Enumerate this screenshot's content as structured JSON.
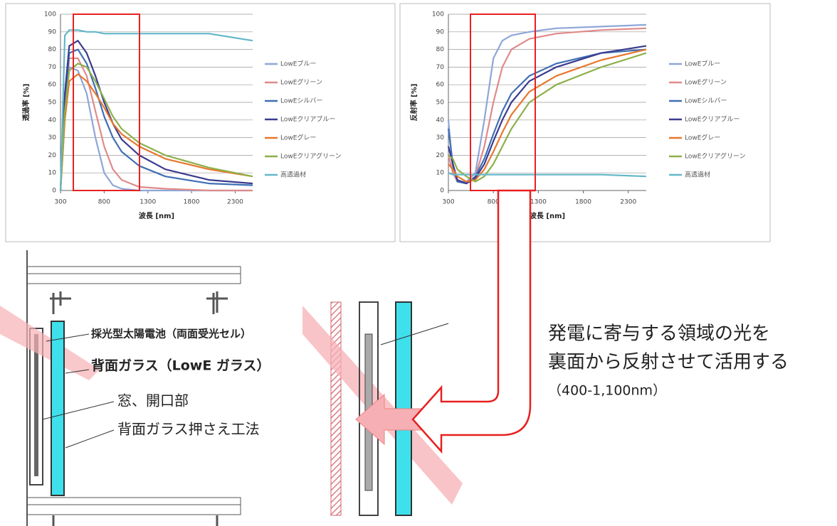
{
  "chart_data": [
    {
      "type": "line",
      "xlabel": "波長 [nm]",
      "ylabel": "透過率 [%]",
      "x": [
        300,
        350,
        400,
        500,
        600,
        700,
        800,
        900,
        1000,
        1200,
        1500,
        2000,
        2500
      ],
      "xlim": [
        300,
        2500
      ],
      "xticks": [
        300,
        800,
        1300,
        1800,
        2300
      ],
      "ylim": [
        0,
        100
      ],
      "yticks": [
        0,
        10,
        20,
        30,
        40,
        50,
        60,
        70,
        80,
        90,
        100
      ],
      "grid": true,
      "series": [
        {
          "name": "LowEブルー",
          "color": "#8ea6d8",
          "values": [
            0,
            40,
            70,
            68,
            55,
            30,
            10,
            3,
            1,
            0,
            0,
            0,
            0
          ]
        },
        {
          "name": "LowEグリーン",
          "color": "#e08a8a",
          "values": [
            0,
            45,
            75,
            75,
            65,
            45,
            25,
            12,
            6,
            2,
            1,
            0,
            0
          ]
        },
        {
          "name": "LowEシルバー",
          "color": "#3f6fb5",
          "values": [
            0,
            50,
            78,
            80,
            72,
            58,
            42,
            30,
            22,
            14,
            8,
            4,
            3
          ]
        },
        {
          "name": "LowEクリアブルー",
          "color": "#3b3b8f",
          "values": [
            0,
            55,
            82,
            85,
            78,
            65,
            50,
            38,
            29,
            20,
            12,
            6,
            4
          ]
        },
        {
          "name": "LowEグレー",
          "color": "#e8772e",
          "values": [
            0,
            40,
            62,
            66,
            62,
            55,
            47,
            38,
            32,
            25,
            18,
            12,
            8
          ]
        },
        {
          "name": "LowEクリアグリーン",
          "color": "#8db04a",
          "values": [
            0,
            45,
            68,
            72,
            70,
            62,
            52,
            42,
            35,
            27,
            20,
            13,
            8
          ]
        },
        {
          "name": "高透過材",
          "color": "#63b7c9",
          "values": [
            0,
            88,
            91,
            91,
            90,
            90,
            89,
            89,
            89,
            89,
            89,
            89,
            85
          ]
        }
      ]
    },
    {
      "type": "line",
      "xlabel": "波長 [nm]",
      "ylabel": "反射率 [%]",
      "x": [
        300,
        350,
        400,
        500,
        600,
        700,
        800,
        900,
        1000,
        1200,
        1500,
        2000,
        2500
      ],
      "xlim": [
        300,
        2500
      ],
      "xticks": [
        300,
        800,
        1300,
        1800,
        2300
      ],
      "ylim": [
        0,
        100
      ],
      "yticks": [
        0,
        10,
        20,
        30,
        40,
        50,
        60,
        70,
        80,
        90,
        100
      ],
      "grid": true,
      "series": [
        {
          "name": "LowEブルー",
          "color": "#8ea6d8",
          "values": [
            40,
            12,
            5,
            5,
            10,
            40,
            75,
            85,
            88,
            90,
            92,
            93,
            94
          ]
        },
        {
          "name": "LowEグリーン",
          "color": "#e08a8a",
          "values": [
            20,
            10,
            5,
            4,
            8,
            25,
            50,
            70,
            80,
            86,
            89,
            91,
            92
          ]
        },
        {
          "name": "LowEシルバー",
          "color": "#3f6fb5",
          "values": [
            35,
            15,
            5,
            4,
            8,
            18,
            32,
            45,
            55,
            65,
            72,
            78,
            80
          ]
        },
        {
          "name": "LowEクリアブルー",
          "color": "#3b3b8f",
          "values": [
            25,
            15,
            6,
            4,
            7,
            15,
            28,
            40,
            50,
            62,
            70,
            78,
            82
          ]
        },
        {
          "name": "LowEグレー",
          "color": "#e8772e",
          "values": [
            15,
            12,
            8,
            5,
            6,
            12,
            22,
            33,
            43,
            56,
            65,
            74,
            80
          ]
        },
        {
          "name": "LowEクリアグリーン",
          "color": "#8db04a",
          "values": [
            20,
            18,
            12,
            8,
            5,
            8,
            15,
            25,
            35,
            50,
            60,
            70,
            78
          ]
        },
        {
          "name": "高透過材",
          "color": "#63b7c9",
          "values": [
            10,
            9,
            9,
            9,
            9,
            9,
            9,
            9,
            9,
            9,
            9,
            9,
            8
          ]
        }
      ]
    }
  ],
  "diagram": {
    "labels": [
      "採光型太陽電池（両面受光セル）",
      "背面ガラス（LowE ガラス）",
      "窓、開口部",
      "背面ガラス押さえ工法"
    ],
    "note": [
      "発電に寄与する領域の光を",
      "裏面から反射させて活用する",
      "（400-1,100nm）"
    ]
  }
}
